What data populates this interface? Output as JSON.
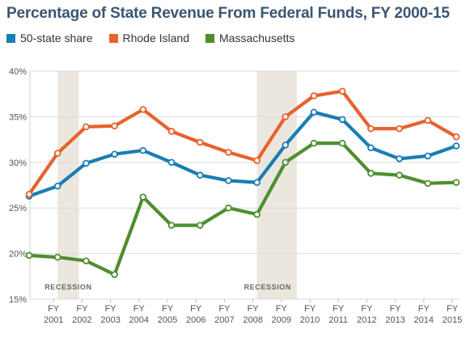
{
  "chart_data": {
    "type": "line",
    "title": "Percentage of State Revenue From Federal Funds, FY 2000-15",
    "x": [
      2000,
      2001,
      2002,
      2003,
      2004,
      2005,
      2006,
      2007,
      2008,
      2009,
      2010,
      2011,
      2012,
      2013,
      2014,
      2015
    ],
    "xtick_labels": [
      {
        "top": "FY",
        "bottom": "2001"
      },
      {
        "top": "FY",
        "bottom": "2002"
      },
      {
        "top": "FY",
        "bottom": "2003"
      },
      {
        "top": "FY",
        "bottom": "2004"
      },
      {
        "top": "FY",
        "bottom": "2005"
      },
      {
        "top": "FY",
        "bottom": "2006"
      },
      {
        "top": "FY",
        "bottom": "2007"
      },
      {
        "top": "FY",
        "bottom": "2008"
      },
      {
        "top": "FY",
        "bottom": "2009"
      },
      {
        "top": "FY",
        "bottom": "2010"
      },
      {
        "top": "FY",
        "bottom": "2011"
      },
      {
        "top": "FY",
        "bottom": "2012"
      },
      {
        "top": "FY",
        "bottom": "2013"
      },
      {
        "top": "FY",
        "bottom": "2014"
      },
      {
        "top": "FY",
        "bottom": "2015"
      }
    ],
    "ylim": [
      15,
      40
    ],
    "yticks": [
      15,
      20,
      25,
      30,
      35,
      40
    ],
    "ytick_suffix": "%",
    "grid": true,
    "legend_position": "top-left",
    "series": [
      {
        "name": "50-state share",
        "color": "#1a7db5",
        "values": [
          26.3,
          27.4,
          29.9,
          30.9,
          31.3,
          30.0,
          28.6,
          28.0,
          27.8,
          31.9,
          35.5,
          34.7,
          31.6,
          30.4,
          30.7,
          31.8
        ]
      },
      {
        "name": "Rhode Island",
        "color": "#e8622c",
        "values": [
          26.5,
          31.0,
          33.9,
          34.0,
          35.8,
          33.4,
          32.2,
          31.1,
          30.2,
          35.0,
          37.3,
          37.8,
          33.7,
          33.7,
          34.6,
          32.8
        ]
      },
      {
        "name": "Massachusetts",
        "color": "#4e8e2f",
        "values": [
          19.8,
          19.6,
          19.2,
          17.7,
          26.2,
          23.1,
          23.1,
          25.0,
          24.3,
          30.0,
          32.1,
          32.1,
          28.8,
          28.6,
          27.7,
          27.8
        ]
      }
    ],
    "recessions": [
      {
        "label": "RECESSION",
        "start": 2001,
        "end": 2001.75
      },
      {
        "label": "RECESSION",
        "start": 2008,
        "end": 2009.4
      }
    ]
  }
}
